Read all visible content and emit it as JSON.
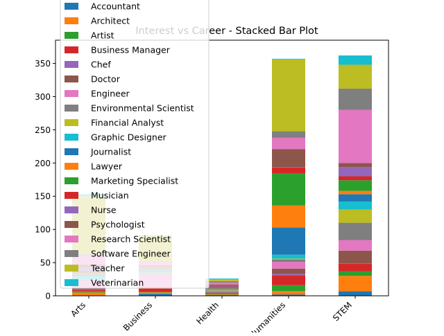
{
  "chart_data": {
    "type": "bar",
    "stacked": true,
    "title": "Interest vs Career - Stacked Bar Plot",
    "xlabel": "",
    "ylabel": "",
    "ylim": [
      0,
      385
    ],
    "yticks": [
      0,
      50,
      100,
      150,
      200,
      250,
      300,
      350
    ],
    "categories": [
      "Arts",
      "Business",
      "Health",
      "Humanities",
      "STEM"
    ],
    "legend_position": "top-left",
    "series": [
      {
        "name": "Accountant",
        "color": "#1f77b4",
        "values": [
          0,
          3,
          1,
          2,
          7
        ]
      },
      {
        "name": "Architect",
        "color": "#ff7f0e",
        "values": [
          5,
          2,
          1,
          5,
          23
        ]
      },
      {
        "name": "Artist",
        "color": "#2ca02c",
        "values": [
          2,
          1,
          1,
          9,
          7
        ]
      },
      {
        "name": "Business Manager",
        "color": "#d62728",
        "values": [
          2,
          5,
          1,
          15,
          11
        ]
      },
      {
        "name": "Chef",
        "color": "#9467bd",
        "values": [
          1,
          1,
          1,
          2,
          1
        ]
      },
      {
        "name": "Doctor",
        "color": "#8c564b",
        "values": [
          1,
          1,
          1,
          8,
          19
        ]
      },
      {
        "name": "Engineer",
        "color": "#e377c2",
        "values": [
          12,
          20,
          1,
          10,
          16
        ]
      },
      {
        "name": "Environmental Scientist",
        "color": "#7f7f7f",
        "values": [
          1,
          1,
          1,
          4,
          26
        ]
      },
      {
        "name": "Financial Analyst",
        "color": "#bcbd22",
        "values": [
          1,
          1,
          1,
          1,
          20
        ]
      },
      {
        "name": "Graphic Designer",
        "color": "#17becf",
        "values": [
          5,
          3,
          1,
          6,
          12
        ]
      },
      {
        "name": "Journalist",
        "color": "#1f77b4",
        "values": [
          2,
          1,
          1,
          41,
          11
        ]
      },
      {
        "name": "Lawyer",
        "color": "#ff7f0e",
        "values": [
          1,
          1,
          1,
          33,
          5
        ]
      },
      {
        "name": "Marketing Specialist",
        "color": "#2ca02c",
        "values": [
          2,
          1,
          1,
          48,
          16
        ]
      },
      {
        "name": "Musician",
        "color": "#d62728",
        "values": [
          2,
          1,
          1,
          9,
          6
        ]
      },
      {
        "name": "Nurse",
        "color": "#9467bd",
        "values": [
          5,
          2,
          1,
          1,
          14
        ]
      },
      {
        "name": "Psychologist",
        "color": "#8c564b",
        "values": [
          5,
          2,
          2,
          27,
          6
        ]
      },
      {
        "name": "Research Scientist",
        "color": "#e377c2",
        "values": [
          14,
          5,
          3,
          17,
          80
        ]
      },
      {
        "name": "Software Engineer",
        "color": "#7f7f7f",
        "values": [
          2,
          1,
          2,
          10,
          32
        ]
      },
      {
        "name": "Teacher",
        "color": "#bcbd22",
        "values": [
          87,
          38,
          3,
          108,
          36
        ]
      },
      {
        "name": "Veterinarian",
        "color": "#17becf",
        "values": [
          3,
          1,
          1,
          1,
          14
        ]
      }
    ]
  }
}
